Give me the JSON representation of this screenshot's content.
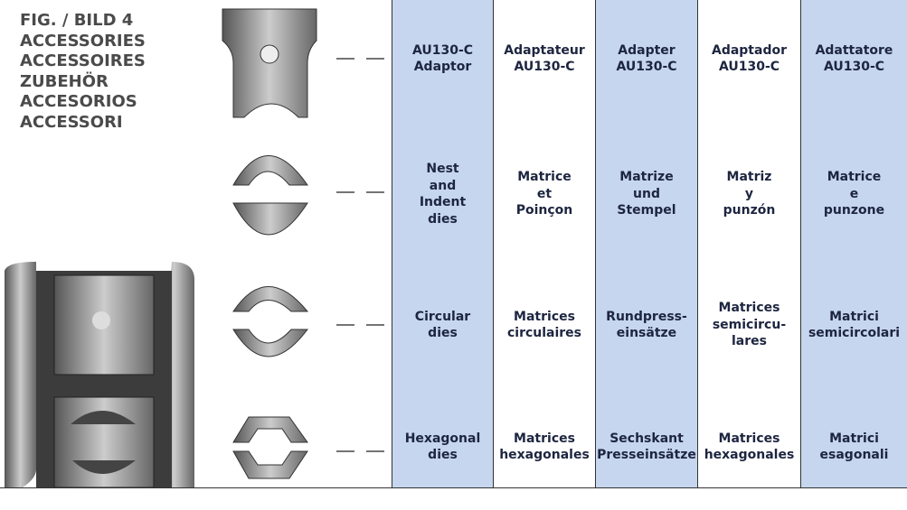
{
  "title": [
    "FIG. / BILD 4",
    "ACCESSORIES",
    "ACCESSOIRES",
    "ZUBEHÖR",
    "ACCESORIOS",
    "ACCESSORI"
  ],
  "table": {
    "rows": [
      [
        [
          "AU130-C",
          "Adaptor"
        ],
        [
          "Adaptateur",
          "AU130-C"
        ],
        [
          "Adapter",
          "AU130-C"
        ],
        [
          "Adaptador",
          "AU130-C"
        ],
        [
          "Adattatore",
          "AU130-C"
        ]
      ],
      [
        [
          "Nest",
          "and",
          "Indent",
          "dies"
        ],
        [
          "Matrice",
          "et",
          "Poinçon"
        ],
        [
          "Matrize",
          "und",
          "Stempel"
        ],
        [
          "Matriz",
          "y",
          "punzón"
        ],
        [
          "Matrice",
          "e",
          "punzone"
        ]
      ],
      [
        [
          "Circular",
          "dies"
        ],
        [
          "Matrices",
          "circulaires"
        ],
        [
          "Rundpress-",
          "einsätze"
        ],
        [
          "Matrices",
          "semicircu-",
          "lares"
        ],
        [
          "Matrici",
          "semicircolari"
        ]
      ],
      [
        [
          "Hexagonal",
          "dies"
        ],
        [
          "Matrices",
          "hexagonales"
        ],
        [
          "Sechskant",
          "Presseinsätze"
        ],
        [
          "Matrices",
          "hexagonales"
        ],
        [
          "Matrici",
          "esagonali"
        ]
      ]
    ]
  }
}
